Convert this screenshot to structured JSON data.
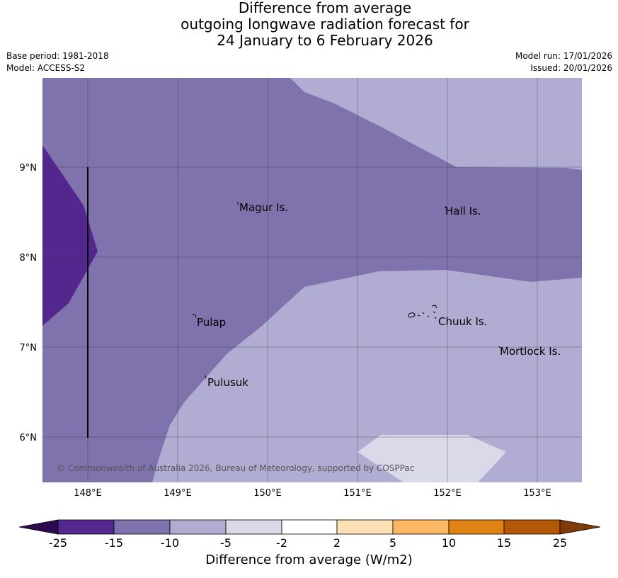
{
  "title": {
    "line1": "Difference from average",
    "line2": "outgoing longwave radiation forecast for",
    "line3": "24 January to 6 February 2026"
  },
  "meta": {
    "base_period": "Base period: 1981-2018",
    "model": "Model: ACCESS-S2",
    "model_run": "Model run: 17/01/2026",
    "issued": "Issued: 20/01/2026"
  },
  "map": {
    "lat_labels": [
      "9°N",
      "8°N",
      "7°N",
      "6°N"
    ],
    "lon_labels": [
      "148°E",
      "149°E",
      "150°E",
      "151°E",
      "152°E",
      "153°E"
    ],
    "places": [
      {
        "name": "Magur Is."
      },
      {
        "name": "Hall Is."
      },
      {
        "name": "Pulap"
      },
      {
        "name": "Chuuk Is."
      },
      {
        "name": "Mortlock Is."
      },
      {
        "name": "Pulusuk"
      }
    ],
    "copyright": "© Commonwealth of Australia 2026, Bureau of Meteorology, supported by COSPPac"
  },
  "colorbar": {
    "title": "Difference from average (W/m2)",
    "ticks": [
      "-25",
      "-15",
      "-10",
      "-5",
      "-2",
      "2",
      "5",
      "10",
      "15",
      "25"
    ],
    "colors": {
      "below": "#2d0a4e",
      "c1": "#54278f",
      "c2": "#7f72ad",
      "c3": "#b1acd2",
      "c4": "#d9d9ea",
      "c5": "#ffffff",
      "c6": "#fee0b6",
      "c7": "#fdb863",
      "c8": "#e08214",
      "c9": "#b35806",
      "above": "#7f3b08"
    }
  }
}
